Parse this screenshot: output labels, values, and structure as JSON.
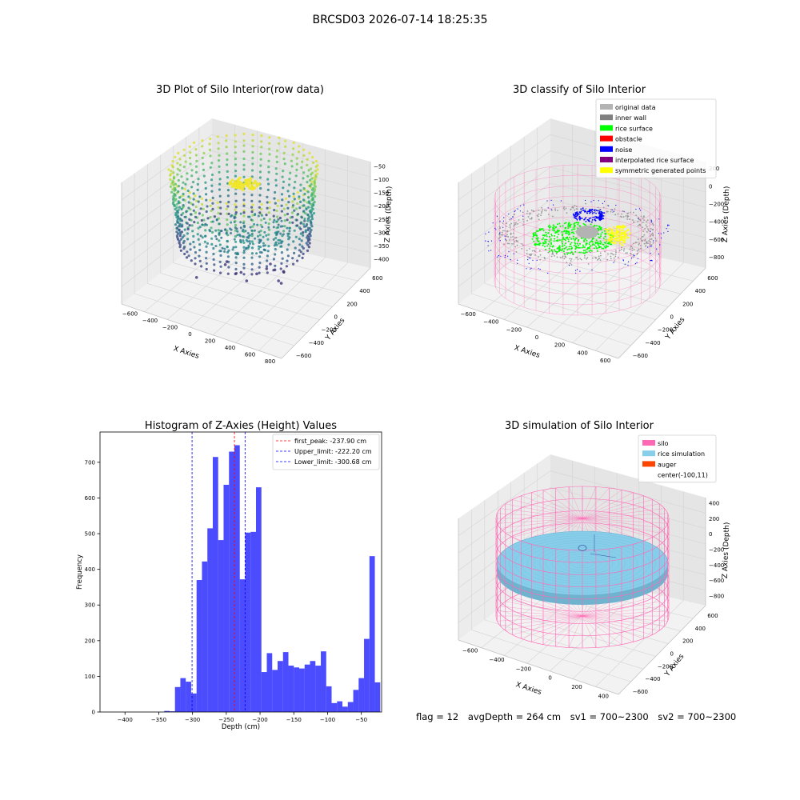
{
  "suptitle": "BRCSD03 2026-07-14 18:25:35",
  "footer": {
    "flag": "flag = 12",
    "avg_depth": "avgDepth = 264 cm",
    "sv1": "sv1 = 700~2300",
    "sv2": "sv2 = 700~2300"
  },
  "chart_data": [
    {
      "type": "scatter",
      "projection": "3d",
      "title": "3D Plot of Silo Interior(row data)",
      "xlabel": "X Axies",
      "ylabel": "Y Axies",
      "zlabel": "Z Axies (Depth)",
      "x_ticks": [
        "−600",
        "−400",
        "−200",
        "0",
        "200",
        "400",
        "600",
        "800"
      ],
      "y_ticks": [
        "−600",
        "−400",
        "−200",
        "0",
        "200",
        "400",
        "600"
      ],
      "z_ticks": [
        "−50",
        "−100",
        "−150",
        "−200",
        "−250",
        "−300",
        "−350",
        "−400"
      ],
      "colormap": "viridis",
      "point_groups": [
        {
          "shape": "ring",
          "radius": 450,
          "z_top": -60,
          "z_bottom": -330
        },
        {
          "shape": "disc",
          "radius": 300,
          "z": -240
        },
        {
          "shape": "cap",
          "radius": 120,
          "z": -80
        }
      ]
    },
    {
      "type": "scatter",
      "projection": "3d",
      "title": "3D classify of Silo Interior",
      "zlabel": "Z Axies (Depth)",
      "xlabel": "X Axies",
      "ylabel": "Y Axies",
      "x_ticks": [
        "−600",
        "−400",
        "−200",
        "0",
        "200",
        "400",
        "600"
      ],
      "y_ticks": [
        "−600",
        "−400",
        "−200",
        "0",
        "200",
        "400",
        "600"
      ],
      "z_ticks": [
        "200",
        "0",
        "−200",
        "−400",
        "−600",
        "−800"
      ],
      "legend": [
        {
          "label": "original data",
          "color": "#b3b3b3"
        },
        {
          "label": "inner wall",
          "color": "#808080"
        },
        {
          "label": "rice surface",
          "color": "#00ff00"
        },
        {
          "label": "obstacle",
          "color": "#ff0000"
        },
        {
          "label": "noise",
          "color": "#0000ff"
        },
        {
          "label": "interpolated rice surface",
          "color": "#800080"
        },
        {
          "label": "symmetric generated points",
          "color": "#ffff00"
        }
      ],
      "silo_wireframe_color": "#ff69b4"
    },
    {
      "type": "bar",
      "title": "Histogram of Z-Axies (Height) Values",
      "xlabel": "Depth (cm)",
      "ylabel": "Frequency",
      "xlim": [
        -437,
        -20
      ],
      "ylim": [
        0,
        785
      ],
      "bar_color": "#0000ff",
      "bar_alpha": 0.7,
      "x_ticks": [
        -400,
        -350,
        -300,
        -250,
        -200,
        -150,
        -100,
        -50
      ],
      "x_tick_labels": [
        "−400",
        "−350",
        "−300",
        "−250",
        "−200",
        "−150",
        "−100",
        "−50"
      ],
      "y_ticks": [
        0,
        100,
        200,
        300,
        400,
        500,
        600,
        700
      ],
      "y_tick_labels": [
        "0",
        "100",
        "200",
        "300",
        "400",
        "500",
        "600",
        "700"
      ],
      "bin_width": 8,
      "bins_start": [
        -342,
        -334,
        -326,
        -318,
        -310,
        -302,
        -294,
        -286,
        -278,
        -270,
        -262,
        -254,
        -246,
        -238,
        -230,
        -222,
        -214,
        -206,
        -198,
        -190,
        -182,
        -174,
        -166,
        -158,
        -150,
        -142,
        -134,
        -126,
        -118,
        -110,
        -102,
        -94,
        -86,
        -78,
        -70,
        -62,
        -54,
        -46,
        -38,
        -30
      ],
      "values": [
        3,
        2,
        70,
        95,
        85,
        52,
        370,
        422,
        515,
        715,
        482,
        637,
        730,
        748,
        372,
        503,
        505,
        630,
        112,
        165,
        118,
        143,
        168,
        130,
        125,
        122,
        133,
        143,
        130,
        170,
        72,
        25,
        30,
        15,
        28,
        62,
        95,
        205,
        437,
        83
      ],
      "vlines": [
        {
          "label": "first_peak: -237.90 cm",
          "x": -237.9,
          "color": "#ff0000"
        },
        {
          "label": "Upper_limit: -222.20 cm",
          "x": -222.2,
          "color": "#0000ff"
        },
        {
          "label": "Lower_limit: -300.68 cm",
          "x": -300.68,
          "color": "#0000ff"
        }
      ]
    },
    {
      "type": "surface",
      "projection": "3d",
      "title": "3D simulation of Silo Interior",
      "zlabel": "Z Axies (Depth)",
      "xlabel": "X Axies",
      "ylabel": "Y Axies",
      "x_ticks": [
        "−600",
        "−400",
        "−200",
        "0",
        "200",
        "400"
      ],
      "y_ticks": [
        "−600",
        "−400",
        "−200",
        "0",
        "200",
        "400",
        "600"
      ],
      "z_ticks": [
        "400",
        "200",
        "0",
        "−200",
        "−400",
        "−600",
        "−800"
      ],
      "legend": [
        {
          "label": "silo",
          "color": "#ff69b4"
        },
        {
          "label": "rice simulation",
          "color": "#87ceeb"
        },
        {
          "label": "auger",
          "color": "#ff4500"
        },
        {
          "label": "center(-100,11)",
          "color": ""
        }
      ]
    }
  ]
}
